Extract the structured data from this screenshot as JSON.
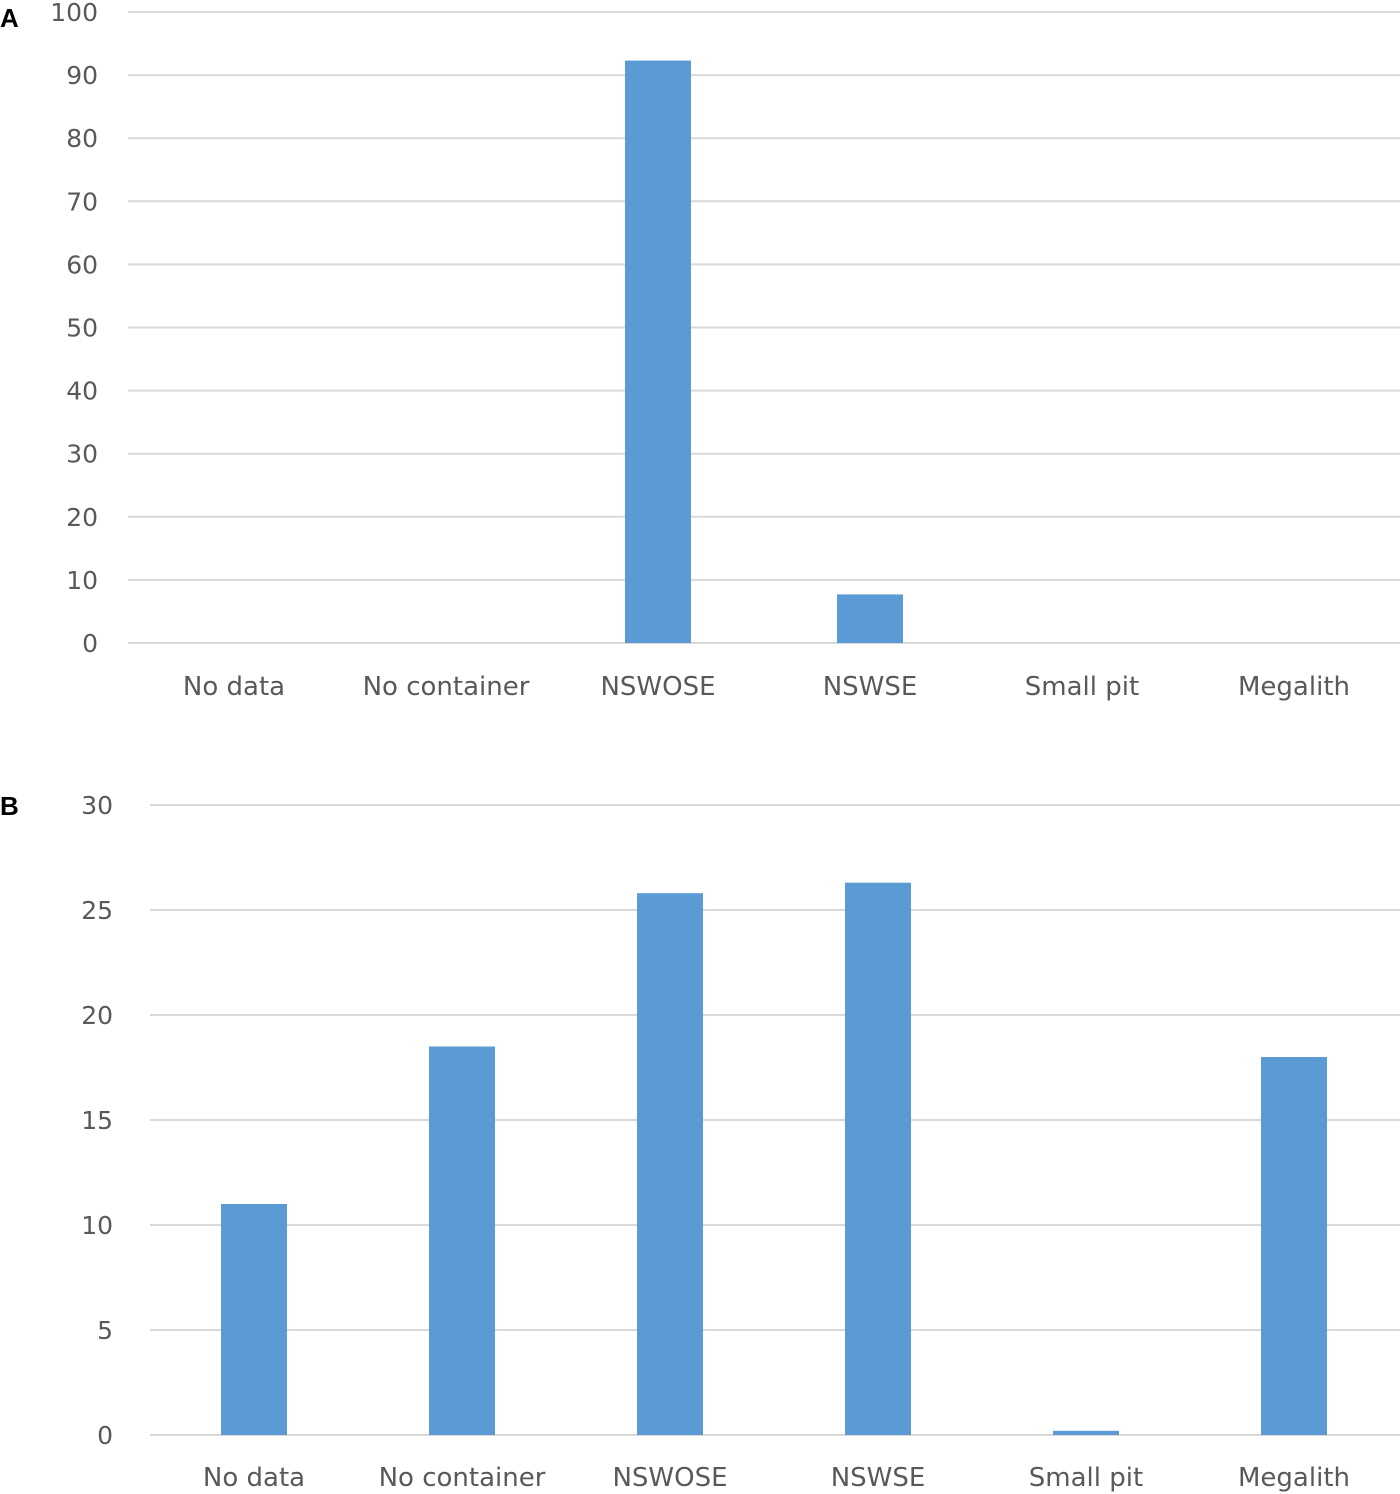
{
  "panels": [
    {
      "label": "A"
    },
    {
      "label": "B"
    }
  ],
  "colors": {
    "bar": "#5b9bd5",
    "grid": "#d9d9d9",
    "text": "#595959"
  },
  "chart_data": [
    {
      "type": "bar",
      "panel": "A",
      "categories": [
        "No data",
        "No container",
        "NSWOSE",
        "NSWSE",
        "Small pit",
        "Megalith"
      ],
      "values": [
        0,
        0,
        92.3,
        7.7,
        0,
        0
      ],
      "yticks": [
        0,
        10,
        20,
        30,
        40,
        50,
        60,
        70,
        80,
        90,
        100
      ],
      "ylim": [
        0,
        100
      ],
      "grid": true,
      "legend": "none",
      "title": "",
      "xlabel": "",
      "ylabel": ""
    },
    {
      "type": "bar",
      "panel": "B",
      "categories": [
        "No data",
        "No container",
        "NSWOSE",
        "NSWSE",
        "Small pit",
        "Megalith"
      ],
      "values": [
        11.0,
        18.5,
        25.8,
        26.3,
        0.2,
        18.0
      ],
      "yticks": [
        0,
        5,
        10,
        15,
        20,
        25,
        30
      ],
      "ylim": [
        0,
        30
      ],
      "grid": true,
      "legend": "none",
      "title": "",
      "xlabel": "",
      "ylabel": ""
    }
  ]
}
